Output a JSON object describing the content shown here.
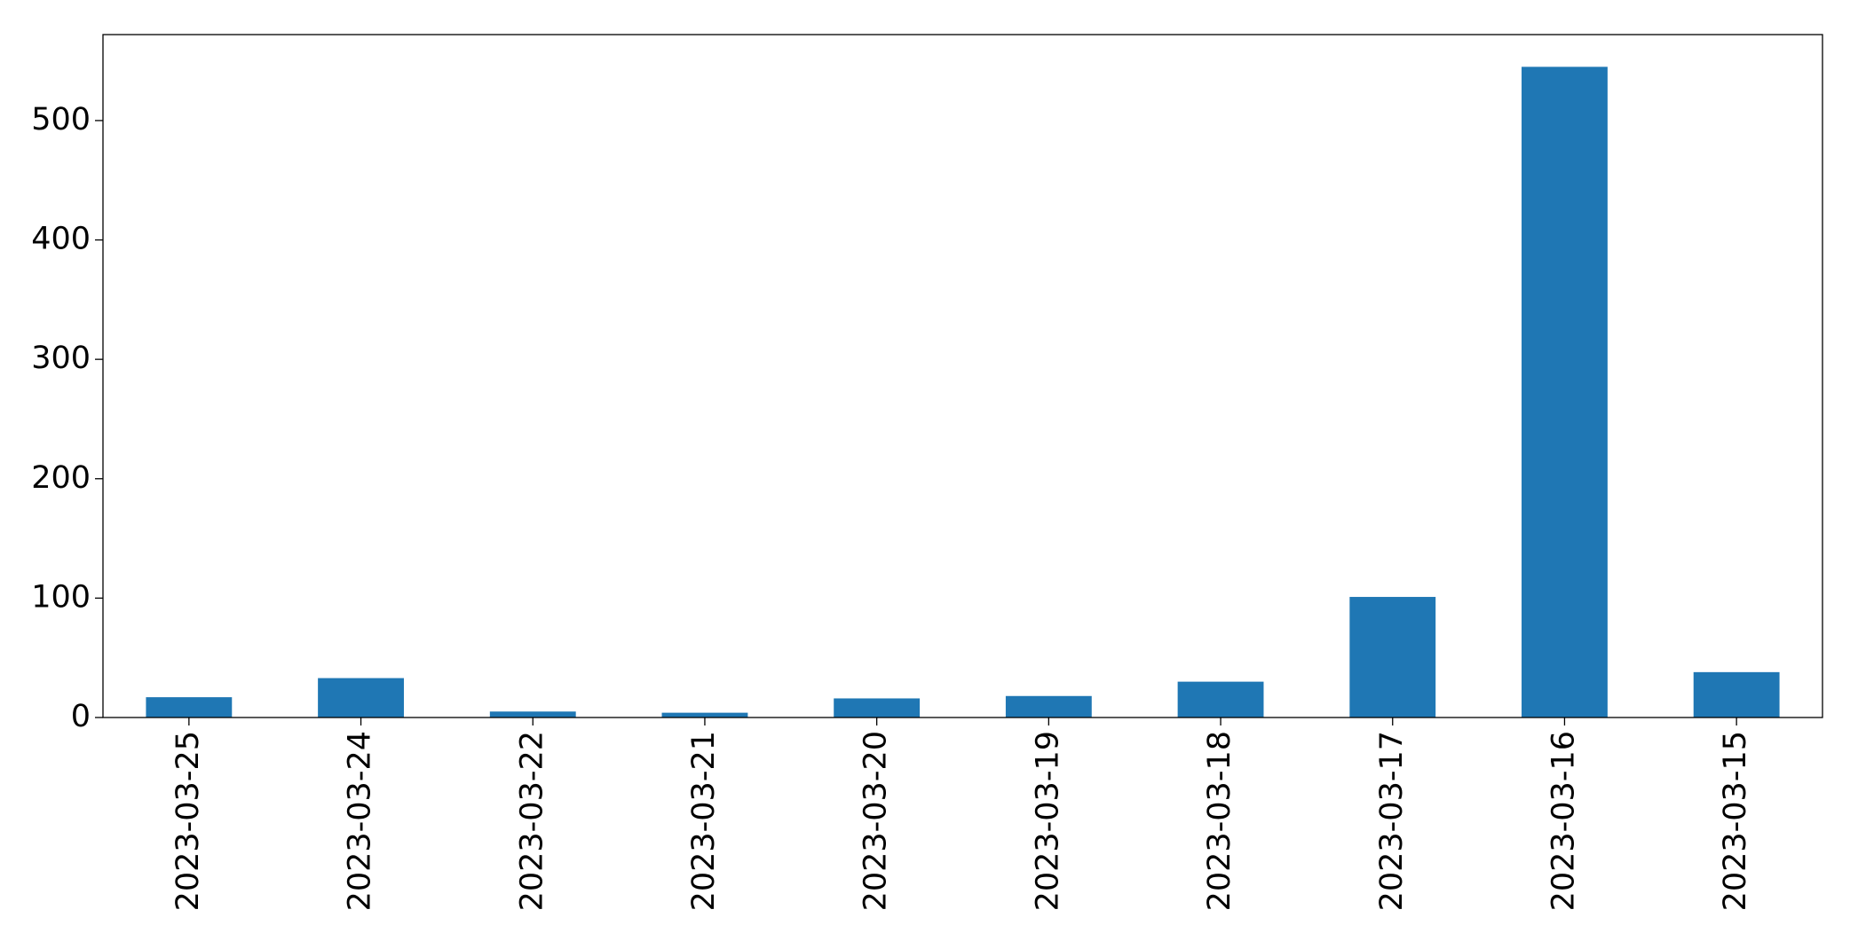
{
  "chart_data": {
    "type": "bar",
    "categories": [
      "2023-03-25",
      "2023-03-24",
      "2023-03-22",
      "2023-03-21",
      "2023-03-20",
      "2023-03-19",
      "2023-03-18",
      "2023-03-17",
      "2023-03-16",
      "2023-03-15"
    ],
    "values": [
      17,
      33,
      5,
      4,
      16,
      18,
      30,
      101,
      545,
      38
    ],
    "color": "#1f77b4",
    "ylim": [
      0,
      572
    ],
    "yticks": [
      0,
      100,
      200,
      300,
      400,
      500
    ],
    "grid": false
  }
}
